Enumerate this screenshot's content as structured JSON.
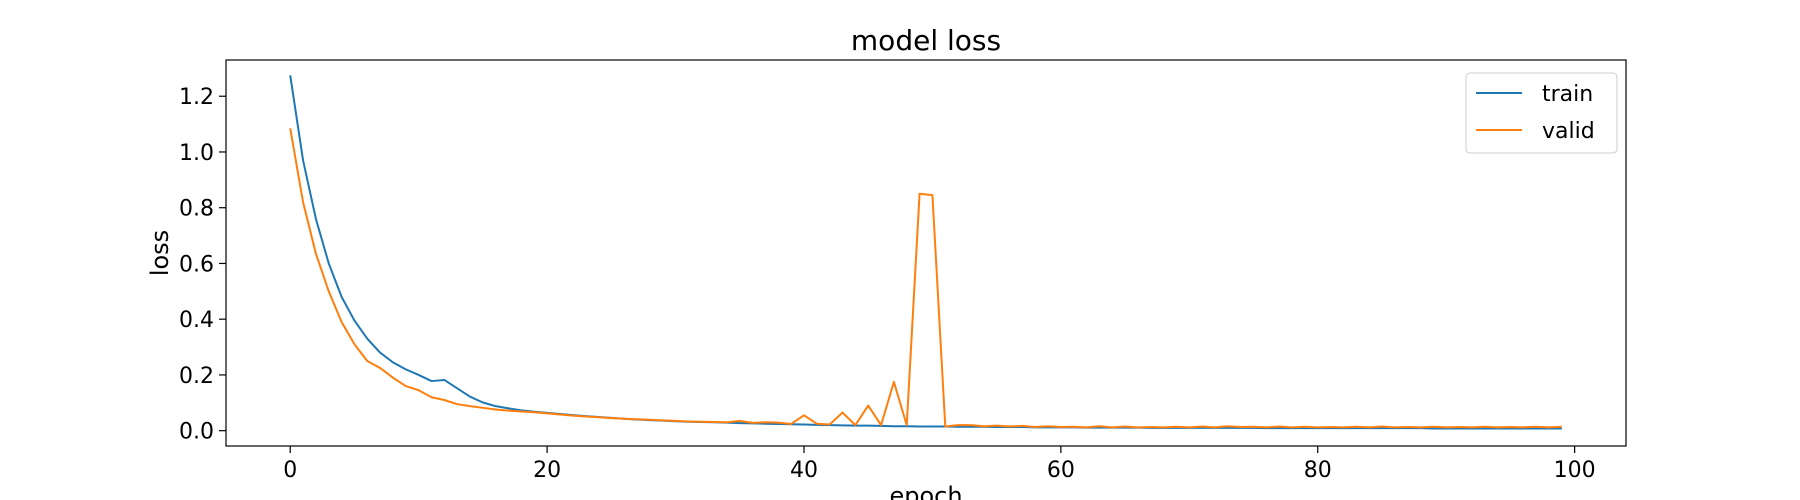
{
  "chart_data": {
    "type": "line",
    "title": "model loss",
    "xlabel": "epoch",
    "ylabel": "loss",
    "xlim": [
      -5,
      104
    ],
    "ylim": [
      -0.055,
      1.33
    ],
    "xticks": [
      0,
      20,
      40,
      60,
      80,
      100
    ],
    "xtick_labels": [
      "0",
      "20",
      "40",
      "60",
      "80",
      "100"
    ],
    "yticks": [
      0.0,
      0.2,
      0.4,
      0.6,
      0.8,
      1.0,
      1.2
    ],
    "ytick_labels": [
      "0.0",
      "0.2",
      "0.4",
      "0.6",
      "0.8",
      "1.0",
      "1.2"
    ],
    "grid": false,
    "legend_position": "top-right",
    "series": [
      {
        "name": "train",
        "color": "#1f77b4",
        "values": [
          1.275,
          0.97,
          0.76,
          0.6,
          0.48,
          0.395,
          0.33,
          0.28,
          0.245,
          0.22,
          0.2,
          0.178,
          0.182,
          0.152,
          0.122,
          0.101,
          0.088,
          0.08,
          0.073,
          0.068,
          0.064,
          0.06,
          0.056,
          0.052,
          0.049,
          0.046,
          0.043,
          0.04,
          0.038,
          0.036,
          0.034,
          0.032,
          0.031,
          0.03,
          0.029,
          0.027,
          0.026,
          0.025,
          0.024,
          0.023,
          0.022,
          0.021,
          0.02,
          0.019,
          0.018,
          0.018,
          0.017,
          0.016,
          0.016,
          0.015,
          0.015,
          0.015,
          0.014,
          0.014,
          0.014,
          0.013,
          0.013,
          0.013,
          0.012,
          0.012,
          0.012,
          0.012,
          0.011,
          0.011,
          0.011,
          0.011,
          0.011,
          0.01,
          0.01,
          0.01,
          0.01,
          0.01,
          0.01,
          0.01,
          0.01,
          0.01,
          0.009,
          0.009,
          0.009,
          0.009,
          0.009,
          0.009,
          0.009,
          0.009,
          0.009,
          0.009,
          0.009,
          0.009,
          0.009,
          0.008,
          0.008,
          0.008,
          0.008,
          0.008,
          0.008,
          0.008,
          0.008,
          0.008,
          0.008,
          0.008
        ]
      },
      {
        "name": "valid",
        "color": "#ff7f0e",
        "values": [
          1.085,
          0.82,
          0.635,
          0.5,
          0.39,
          0.31,
          0.25,
          0.225,
          0.19,
          0.16,
          0.145,
          0.12,
          0.11,
          0.095,
          0.088,
          0.082,
          0.076,
          0.072,
          0.069,
          0.066,
          0.062,
          0.058,
          0.054,
          0.051,
          0.048,
          0.045,
          0.043,
          0.041,
          0.039,
          0.037,
          0.035,
          0.033,
          0.032,
          0.031,
          0.03,
          0.035,
          0.028,
          0.03,
          0.029,
          0.024,
          0.055,
          0.025,
          0.022,
          0.065,
          0.02,
          0.09,
          0.02,
          0.175,
          0.02,
          0.85,
          0.845,
          0.015,
          0.02,
          0.02,
          0.016,
          0.018,
          0.015,
          0.017,
          0.013,
          0.016,
          0.013,
          0.014,
          0.012,
          0.016,
          0.012,
          0.015,
          0.012,
          0.013,
          0.012,
          0.014,
          0.012,
          0.015,
          0.012,
          0.016,
          0.013,
          0.014,
          0.012,
          0.015,
          0.012,
          0.014,
          0.012,
          0.013,
          0.012,
          0.014,
          0.012,
          0.015,
          0.012,
          0.013,
          0.012,
          0.014,
          0.012,
          0.013,
          0.012,
          0.014,
          0.012,
          0.013,
          0.012,
          0.014,
          0.012,
          0.014
        ]
      }
    ]
  }
}
